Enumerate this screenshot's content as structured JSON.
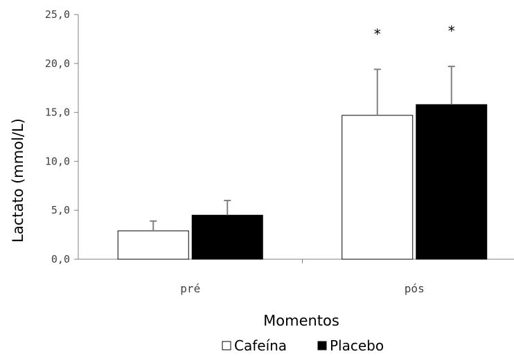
{
  "chart_data": {
    "type": "bar",
    "title": "",
    "xlabel": "Momentos",
    "ylabel": "Lactato (mmol/L)",
    "ylim": [
      0,
      25
    ],
    "yticks": [
      "0,0",
      "5,0",
      "10,0",
      "15,0",
      "20,0",
      "25,0"
    ],
    "categories": [
      "pré",
      "pós"
    ],
    "series": [
      {
        "name": "Cafeína",
        "values": [
          2.9,
          14.7
        ],
        "error": [
          1.0,
          4.7
        ],
        "color": "#ffffff",
        "stroke": "#000000"
      },
      {
        "name": "Placebo",
        "values": [
          4.5,
          15.8
        ],
        "error": [
          1.5,
          3.9
        ],
        "color": "#000000",
        "stroke": "#000000"
      }
    ],
    "annotations": [
      {
        "series": 0,
        "category": 1,
        "text": "*"
      },
      {
        "series": 1,
        "category": 1,
        "text": "*"
      }
    ],
    "grid": false,
    "legend": "bottom"
  }
}
